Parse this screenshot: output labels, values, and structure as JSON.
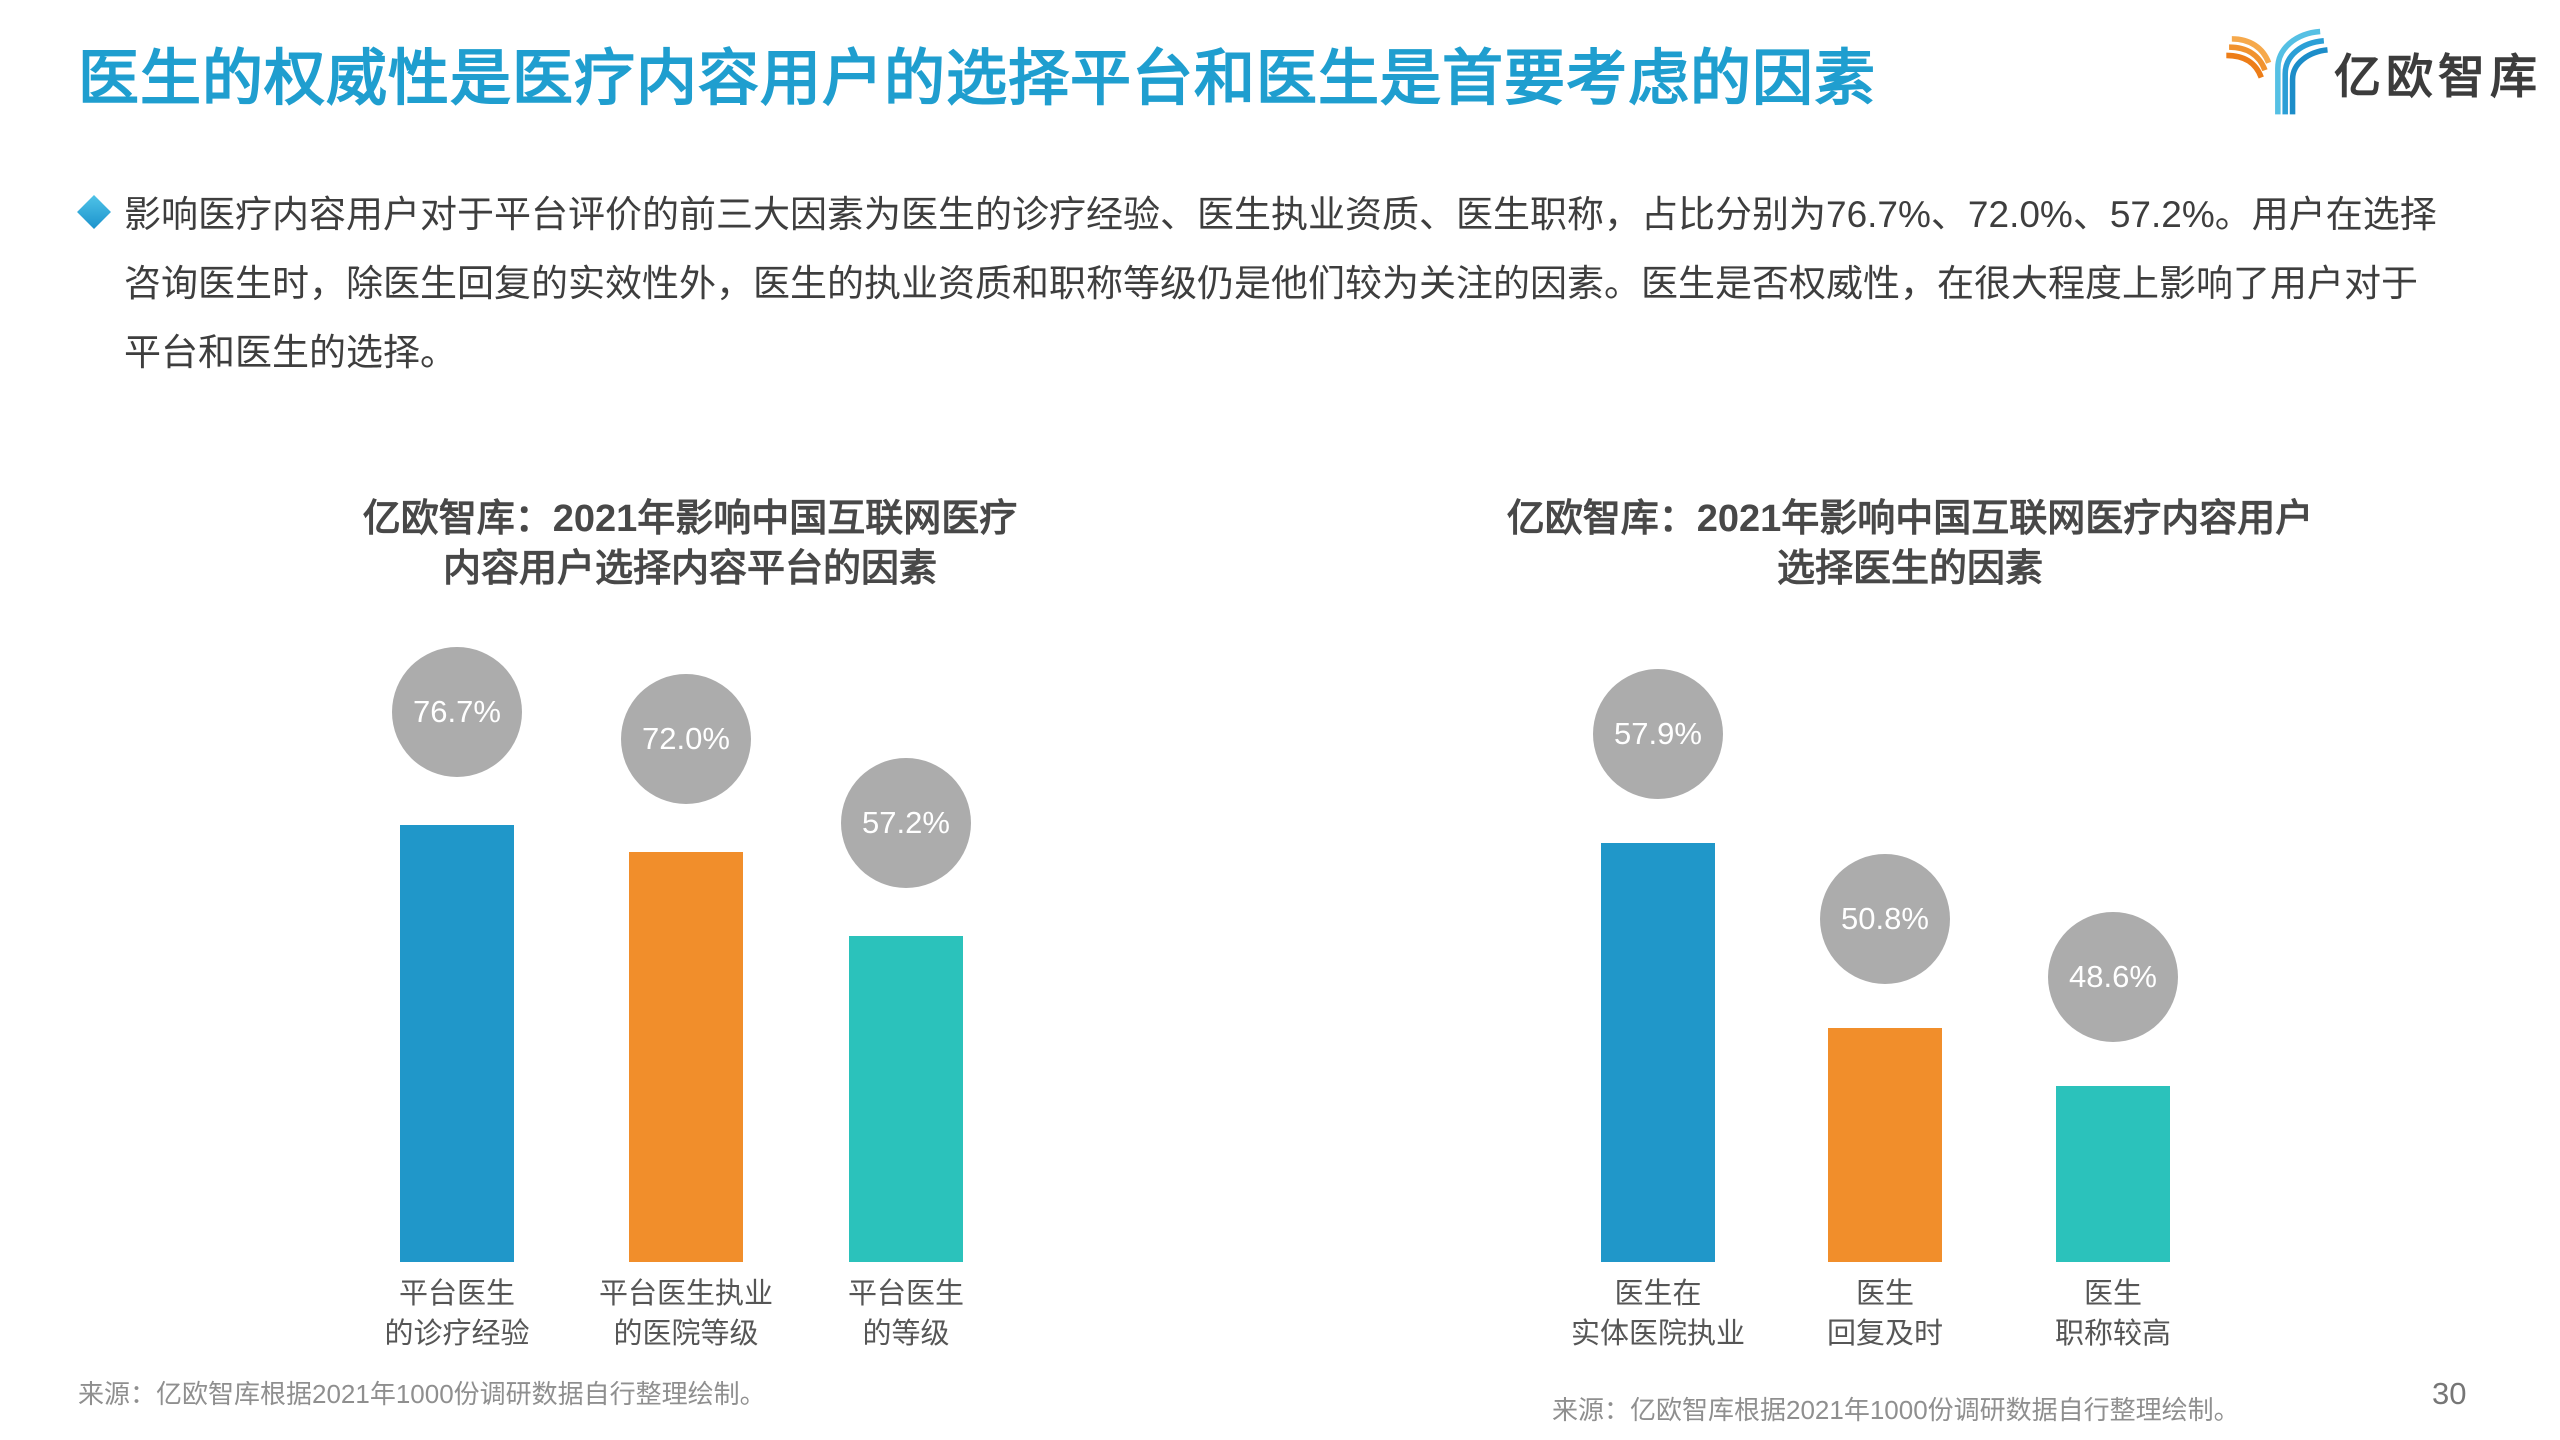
{
  "page": {
    "title": "医生的权威性是医疗内容用户的选择平台和医生是首要考虑的因素",
    "logo_text": "亿欧智库",
    "page_number": "30",
    "bullet_paragraph": "影响医疗内容用户对于平台评价的前三大因素为医生的诊疗经验、医生执业资质、医生职称，占比分别为76.7%、72.0%、57.2%。用户在选择\n咨询医生时，除医生回复的实效性外，医生的执业资质和职称等级仍是他们较为关注的因素。医生是否权威性，在很大程度上影响了用户对于\n平台和医生的选择。"
  },
  "colors": {
    "accent_blue": "#1F9ECF",
    "bar_blue": "#2097C9",
    "bar_orange": "#F18E2B",
    "bar_teal": "#2BC2BB",
    "circle_gray": "#ACACAC",
    "logo_orange": "#F1922E",
    "logo_blue": "#2B9FD6"
  },
  "chart_data": [
    {
      "type": "bar",
      "title": "亿欧智库：2021年影响中国互联网医疗\n内容用户选择内容平台的因素",
      "categories": [
        "平台医生\n的诊疗经验",
        "平台医生执业\n的医院等级",
        "平台医生\n的等级"
      ],
      "values": [
        76.7,
        72.0,
        57.2
      ],
      "unit": "%",
      "value_labels": [
        "76.7%",
        "72.0%",
        "57.2%"
      ],
      "value_label_style": "gray-circle",
      "bar_colors": [
        "#2097C9",
        "#F18E2B",
        "#2BC2BB"
      ],
      "grid": false,
      "axes_shown": false,
      "source": "来源：亿欧智库根据2021年1000份调研数据自行整理绘制。"
    },
    {
      "type": "bar",
      "title": "亿欧智库：2021年影响中国互联网医疗内容用户\n选择医生的因素",
      "categories": [
        "医生在\n实体医院执业",
        "医生\n回复及时",
        "医生\n职称较高"
      ],
      "values": [
        57.9,
        50.8,
        48.6
      ],
      "unit": "%",
      "value_labels": [
        "57.9%",
        "50.8%",
        "48.6%"
      ],
      "value_label_style": "gray-circle",
      "bar_colors": [
        "#2097C9",
        "#F18E2B",
        "#2BC2BB"
      ],
      "grid": false,
      "axes_shown": false,
      "source": "来源：亿欧智库根据2021年1000份调研数据自行整理绘制。"
    }
  ]
}
